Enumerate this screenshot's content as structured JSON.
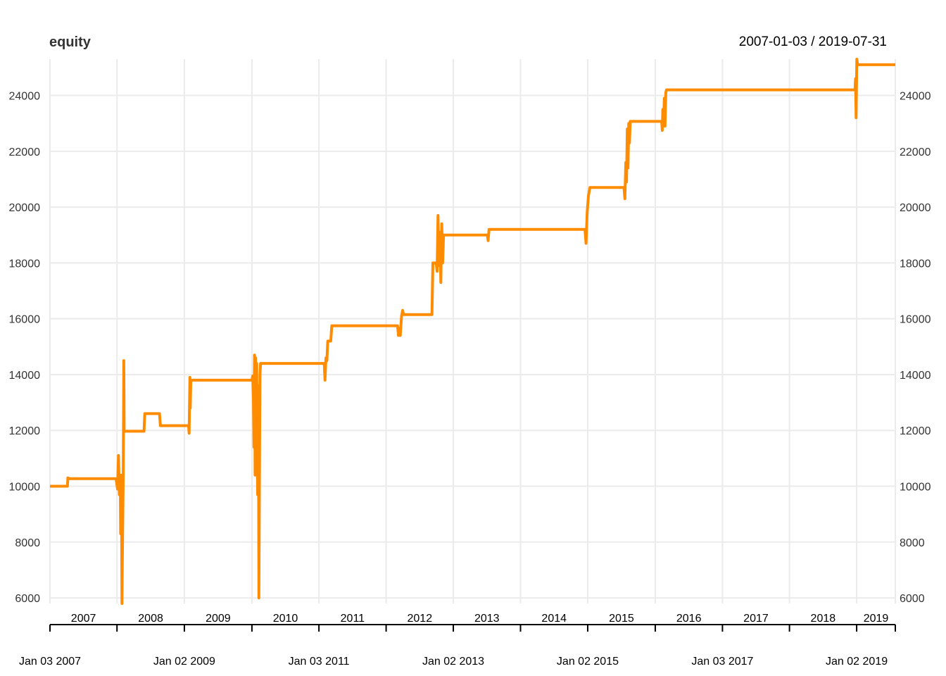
{
  "chart_data": {
    "type": "line",
    "title": "equity",
    "date_range": "2007-01-03 / 2019-07-31",
    "x_start": "2007-01-03",
    "x_end": "2019-07-31",
    "ylim": [
      5800,
      25300
    ],
    "y_ticks": [
      6000,
      8000,
      10000,
      12000,
      14000,
      16000,
      18000,
      20000,
      22000,
      24000
    ],
    "y_tick_labels": [
      "6000",
      "8000",
      "10000",
      "12000",
      "14000",
      "16000",
      "18000",
      "20000",
      "22000",
      "24000"
    ],
    "grid": true,
    "legend": "none",
    "line_color": "#FF8C00",
    "year_labels": [
      "2007",
      "2008",
      "2009",
      "2010",
      "2011",
      "2012",
      "2013",
      "2014",
      "2015",
      "2016",
      "2017",
      "2018",
      "2019"
    ],
    "year_boundaries": [
      "2008-01-02",
      "2009-01-02",
      "2010-01-04",
      "2011-01-03",
      "2012-01-03",
      "2013-01-02",
      "2014-01-02",
      "2015-01-02",
      "2016-01-04",
      "2017-01-03",
      "2018-01-02",
      "2019-01-02"
    ],
    "date_ticks": [
      "2007-01-03",
      "2008-01-02",
      "2009-01-02",
      "2010-01-04",
      "2011-01-03",
      "2012-01-03",
      "2013-01-02",
      "2014-01-02",
      "2015-01-02",
      "2016-01-04",
      "2017-01-03",
      "2018-01-02",
      "2019-01-02",
      "2019-07-31"
    ],
    "date_labels": [
      {
        "date": "2007-01-03",
        "label": "Jan 03 2007"
      },
      {
        "date": "2009-01-02",
        "label": "Jan 02 2009"
      },
      {
        "date": "2011-01-03",
        "label": "Jan 03 2011"
      },
      {
        "date": "2013-01-02",
        "label": "Jan 02 2013"
      },
      {
        "date": "2015-01-02",
        "label": "Jan 02 2015"
      },
      {
        "date": "2017-01-03",
        "label": "Jan 03 2017"
      },
      {
        "date": "2019-01-02",
        "label": "Jan 02 2019"
      }
    ],
    "series": [
      {
        "points": [
          [
            "2007-01-03",
            10000
          ],
          [
            "2007-04-08",
            10000
          ],
          [
            "2007-04-10",
            10300
          ],
          [
            "2007-04-18",
            10270
          ],
          [
            "2007-12-28",
            10270
          ],
          [
            "2008-01-05",
            9900
          ],
          [
            "2008-01-10",
            11100
          ],
          [
            "2008-01-15",
            9700
          ],
          [
            "2008-01-20",
            10300
          ],
          [
            "2008-01-22",
            8300
          ],
          [
            "2008-01-25",
            10400
          ],
          [
            "2008-01-27",
            9100
          ],
          [
            "2008-01-29",
            5800
          ],
          [
            "2008-02-01",
            7800
          ],
          [
            "2008-02-05",
            10400
          ],
          [
            "2008-02-08",
            14500
          ],
          [
            "2008-02-10",
            11970
          ],
          [
            "2008-05-28",
            11970
          ],
          [
            "2008-06-01",
            12600
          ],
          [
            "2008-08-20",
            12600
          ],
          [
            "2008-08-25",
            12170
          ],
          [
            "2009-01-25",
            12170
          ],
          [
            "2009-01-28",
            11900
          ],
          [
            "2009-02-01",
            13900
          ],
          [
            "2009-02-03",
            12800
          ],
          [
            "2009-02-06",
            13800
          ],
          [
            "2010-01-04",
            13800
          ],
          [
            "2010-01-08",
            13950
          ],
          [
            "2010-01-12",
            13200
          ],
          [
            "2010-01-15",
            11400
          ],
          [
            "2010-01-18",
            14700
          ],
          [
            "2010-01-21",
            10400
          ],
          [
            "2010-01-24",
            14600
          ],
          [
            "2010-01-27",
            10800
          ],
          [
            "2010-01-30",
            14400
          ],
          [
            "2010-02-04",
            9700
          ],
          [
            "2010-02-08",
            13600
          ],
          [
            "2010-02-11",
            6000
          ],
          [
            "2010-02-14",
            10200
          ],
          [
            "2010-02-17",
            14000
          ],
          [
            "2010-02-20",
            14400
          ],
          [
            "2011-02-01",
            14400
          ],
          [
            "2011-02-05",
            13800
          ],
          [
            "2011-02-10",
            14600
          ],
          [
            "2011-02-15",
            14500
          ],
          [
            "2011-02-20",
            15200
          ],
          [
            "2011-03-08",
            15200
          ],
          [
            "2011-03-14",
            15750
          ],
          [
            "2012-03-05",
            15750
          ],
          [
            "2012-03-10",
            15400
          ],
          [
            "2012-03-15",
            15650
          ],
          [
            "2012-03-20",
            15400
          ],
          [
            "2012-03-27",
            16100
          ],
          [
            "2012-04-02",
            16300
          ],
          [
            "2012-04-06",
            16150
          ],
          [
            "2012-09-08",
            16150
          ],
          [
            "2012-09-13",
            18000
          ],
          [
            "2012-10-01",
            18000
          ],
          [
            "2012-10-06",
            17700
          ],
          [
            "2012-10-11",
            19700
          ],
          [
            "2012-10-16",
            17900
          ],
          [
            "2012-10-21",
            19100
          ],
          [
            "2012-10-26",
            17300
          ],
          [
            "2012-10-31",
            19400
          ],
          [
            "2012-11-05",
            18000
          ],
          [
            "2012-11-10",
            19000
          ],
          [
            "2013-07-06",
            19000
          ],
          [
            "2013-07-10",
            18800
          ],
          [
            "2013-07-15",
            19200
          ],
          [
            "2014-12-18",
            19200
          ],
          [
            "2014-12-24",
            18700
          ],
          [
            "2014-12-30",
            19800
          ],
          [
            "2015-01-06",
            20400
          ],
          [
            "2015-01-14",
            20700
          ],
          [
            "2015-07-18",
            20700
          ],
          [
            "2015-07-23",
            20300
          ],
          [
            "2015-07-28",
            21600
          ],
          [
            "2015-08-01",
            20900
          ],
          [
            "2015-08-05",
            22800
          ],
          [
            "2015-08-09",
            21400
          ],
          [
            "2015-08-13",
            23000
          ],
          [
            "2015-08-17",
            22300
          ],
          [
            "2015-08-21",
            23070
          ],
          [
            "2016-02-08",
            23070
          ],
          [
            "2016-02-11",
            22750
          ],
          [
            "2016-02-14",
            23500
          ],
          [
            "2016-02-18",
            22950
          ],
          [
            "2016-02-22",
            23900
          ],
          [
            "2016-02-26",
            22900
          ],
          [
            "2016-03-01",
            24100
          ],
          [
            "2016-03-05",
            24200
          ],
          [
            "2018-12-24",
            24200
          ],
          [
            "2018-12-27",
            24600
          ],
          [
            "2018-12-30",
            23200
          ],
          [
            "2019-01-03",
            25300
          ],
          [
            "2019-01-07",
            25100
          ],
          [
            "2019-07-31",
            25100
          ]
        ]
      }
    ]
  }
}
